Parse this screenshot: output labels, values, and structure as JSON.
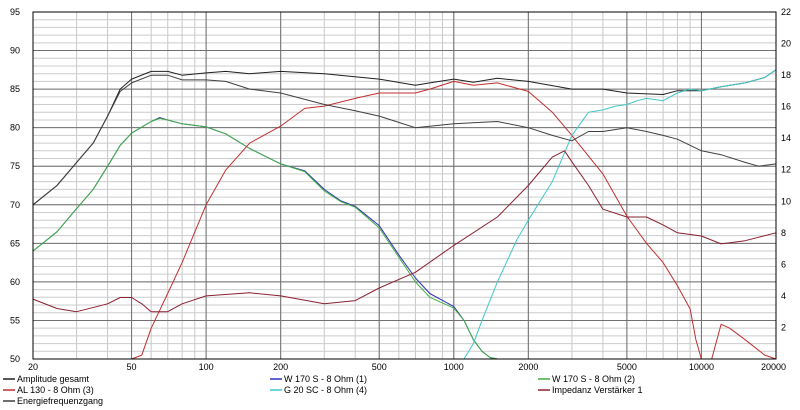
{
  "chart_data": {
    "type": "line",
    "x_scale": "log",
    "xlim": [
      20,
      20000
    ],
    "ylim": [
      50,
      95
    ],
    "y2lim": [
      0,
      22
    ],
    "grid": true,
    "x_ticks": [
      20,
      50,
      100,
      200,
      500,
      1000,
      2000,
      5000,
      10000,
      20000
    ],
    "x_tick_labels": [
      "20",
      "50",
      "100",
      "200",
      "500",
      "1000",
      "2000",
      "5000",
      "10000",
      "20000"
    ],
    "y_ticks": [
      50,
      55,
      60,
      65,
      70,
      75,
      80,
      85,
      90,
      95
    ],
    "y2_ticks": [
      2,
      4,
      6,
      8,
      10,
      12,
      14,
      16,
      18,
      20,
      22
    ],
    "legend_position": "bottom",
    "series": [
      {
        "name": "Amplitude gesamt",
        "color": "#202020",
        "axis": "left",
        "points": [
          [
            20,
            70.0
          ],
          [
            25,
            72.5
          ],
          [
            30,
            75.5
          ],
          [
            35,
            78.0
          ],
          [
            40,
            81.5
          ],
          [
            45,
            85.0
          ],
          [
            50,
            86.3
          ],
          [
            60,
            87.3
          ],
          [
            70,
            87.3
          ],
          [
            80,
            86.8
          ],
          [
            100,
            87.1
          ],
          [
            120,
            87.3
          ],
          [
            150,
            87.0
          ],
          [
            200,
            87.3
          ],
          [
            300,
            87.0
          ],
          [
            500,
            86.3
          ],
          [
            700,
            85.5
          ],
          [
            800,
            85.8
          ],
          [
            1000,
            86.3
          ],
          [
            1200,
            85.9
          ],
          [
            1500,
            86.4
          ],
          [
            2000,
            86.0
          ],
          [
            3000,
            85.0
          ],
          [
            4000,
            85.0
          ],
          [
            5000,
            84.5
          ],
          [
            7000,
            84.3
          ],
          [
            8000,
            84.8
          ],
          [
            10000,
            84.8
          ],
          [
            12000,
            85.3
          ],
          [
            15000,
            85.8
          ],
          [
            18000,
            86.5
          ],
          [
            20000,
            87.5
          ]
        ]
      },
      {
        "name": "W 170 S - 8 Ohm (1)",
        "color": "#3030c0",
        "axis": "left",
        "points": [
          [
            20,
            64.0
          ],
          [
            25,
            66.5
          ],
          [
            30,
            69.5
          ],
          [
            35,
            72.0
          ],
          [
            40,
            75.0
          ],
          [
            45,
            77.7
          ],
          [
            50,
            79.3
          ],
          [
            60,
            80.8
          ],
          [
            65,
            81.3
          ],
          [
            70,
            81.0
          ],
          [
            80,
            80.5
          ],
          [
            100,
            80.1
          ],
          [
            120,
            79.2
          ],
          [
            150,
            77.3
          ],
          [
            200,
            75.3
          ],
          [
            250,
            74.4
          ],
          [
            300,
            72.0
          ],
          [
            350,
            70.5
          ],
          [
            400,
            69.8
          ],
          [
            500,
            67.3
          ],
          [
            600,
            63.5
          ],
          [
            700,
            60.5
          ],
          [
            800,
            58.5
          ],
          [
            1000,
            56.8
          ],
          [
            1100,
            55.0
          ],
          [
            1200,
            52.5
          ],
          [
            1300,
            51.0
          ],
          [
            1400,
            50.2
          ],
          [
            1500,
            50.0
          ],
          [
            20000,
            50.0
          ]
        ]
      },
      {
        "name": "W 170 S - 8 Ohm (2)",
        "color": "#40b040",
        "axis": "left",
        "points": [
          [
            20,
            64.0
          ],
          [
            25,
            66.5
          ],
          [
            30,
            69.5
          ],
          [
            35,
            72.0
          ],
          [
            40,
            75.0
          ],
          [
            45,
            77.7
          ],
          [
            50,
            79.3
          ],
          [
            60,
            80.8
          ],
          [
            65,
            81.2
          ],
          [
            70,
            81.0
          ],
          [
            80,
            80.5
          ],
          [
            100,
            80.1
          ],
          [
            120,
            79.2
          ],
          [
            150,
            77.3
          ],
          [
            200,
            75.3
          ],
          [
            250,
            74.3
          ],
          [
            300,
            71.8
          ],
          [
            350,
            70.4
          ],
          [
            400,
            69.7
          ],
          [
            500,
            67.0
          ],
          [
            600,
            63.2
          ],
          [
            700,
            60.0
          ],
          [
            800,
            58.0
          ],
          [
            1000,
            56.6
          ],
          [
            1100,
            55.0
          ],
          [
            1200,
            52.5
          ],
          [
            1300,
            51.0
          ],
          [
            1400,
            50.2
          ],
          [
            1500,
            50.0
          ],
          [
            20000,
            50.0
          ]
        ]
      },
      {
        "name": "AL 130 - 8 Ohm (3)",
        "color": "#c03030",
        "axis": "left",
        "points": [
          [
            20,
            50.0
          ],
          [
            50,
            50.0
          ],
          [
            55,
            50.5
          ],
          [
            60,
            54.0
          ],
          [
            70,
            58.5
          ],
          [
            80,
            62.5
          ],
          [
            100,
            70.0
          ],
          [
            120,
            74.5
          ],
          [
            150,
            78.0
          ],
          [
            200,
            80.2
          ],
          [
            250,
            82.5
          ],
          [
            300,
            82.8
          ],
          [
            400,
            83.8
          ],
          [
            500,
            84.5
          ],
          [
            700,
            84.5
          ],
          [
            800,
            85.0
          ],
          [
            1000,
            86.0
          ],
          [
            1200,
            85.5
          ],
          [
            1500,
            85.8
          ],
          [
            2000,
            84.7
          ],
          [
            2500,
            82.0
          ],
          [
            3000,
            79.0
          ],
          [
            4000,
            74.0
          ],
          [
            5000,
            68.5
          ],
          [
            6000,
            65.0
          ],
          [
            7000,
            62.5
          ],
          [
            8000,
            59.5
          ],
          [
            9000,
            56.5
          ],
          [
            9500,
            52.5
          ],
          [
            10000,
            50.0
          ],
          [
            11000,
            50.0
          ],
          [
            12000,
            54.5
          ],
          [
            13000,
            54.0
          ],
          [
            15000,
            52.5
          ],
          [
            18000,
            50.5
          ],
          [
            20000,
            50.0
          ]
        ]
      },
      {
        "name": "G 20 SC - 8 Ohm (4)",
        "color": "#40c8c8",
        "axis": "left",
        "points": [
          [
            20,
            50.0
          ],
          [
            1100,
            50.0
          ],
          [
            1200,
            52.0
          ],
          [
            1300,
            55.0
          ],
          [
            1500,
            60.0
          ],
          [
            1800,
            65.5
          ],
          [
            2000,
            68.0
          ],
          [
            2500,
            73.0
          ],
          [
            3000,
            79.0
          ],
          [
            3500,
            82.0
          ],
          [
            4000,
            82.3
          ],
          [
            4500,
            82.8
          ],
          [
            5000,
            83.0
          ],
          [
            5500,
            83.5
          ],
          [
            6000,
            83.8
          ],
          [
            7000,
            83.5
          ],
          [
            8000,
            84.5
          ],
          [
            9000,
            85.0
          ],
          [
            10000,
            84.8
          ],
          [
            12000,
            85.3
          ],
          [
            15000,
            85.8
          ],
          [
            18000,
            86.5
          ],
          [
            20000,
            87.5
          ]
        ]
      },
      {
        "name": "Impedanz Verstärker 1",
        "color": "#8a2030",
        "axis": "right",
        "points": [
          [
            20,
            3.8
          ],
          [
            25,
            3.2
          ],
          [
            30,
            3.0
          ],
          [
            40,
            3.5
          ],
          [
            45,
            3.9
          ],
          [
            50,
            3.9
          ],
          [
            55,
            3.5
          ],
          [
            60,
            3.0
          ],
          [
            70,
            3.0
          ],
          [
            80,
            3.5
          ],
          [
            100,
            4.0
          ],
          [
            150,
            4.2
          ],
          [
            200,
            4.0
          ],
          [
            300,
            3.5
          ],
          [
            400,
            3.7
          ],
          [
            500,
            4.5
          ],
          [
            700,
            5.5
          ],
          [
            1000,
            7.2
          ],
          [
            1500,
            9.0
          ],
          [
            2000,
            11.0
          ],
          [
            2500,
            12.8
          ],
          [
            2800,
            13.2
          ],
          [
            3000,
            12.5
          ],
          [
            3500,
            11.0
          ],
          [
            4000,
            9.5
          ],
          [
            5000,
            9.0
          ],
          [
            6000,
            9.0
          ],
          [
            7000,
            8.5
          ],
          [
            8000,
            8.0
          ],
          [
            10000,
            7.8
          ],
          [
            12000,
            7.3
          ],
          [
            15000,
            7.5
          ],
          [
            20000,
            8.0
          ]
        ]
      },
      {
        "name": "Energiefrequenzgang",
        "color": "#404040",
        "axis": "left",
        "points": [
          [
            20,
            70.0
          ],
          [
            25,
            72.5
          ],
          [
            30,
            75.5
          ],
          [
            35,
            78.0
          ],
          [
            40,
            81.5
          ],
          [
            45,
            84.7
          ],
          [
            50,
            85.8
          ],
          [
            60,
            86.8
          ],
          [
            70,
            86.8
          ],
          [
            80,
            86.2
          ],
          [
            100,
            86.2
          ],
          [
            120,
            86.0
          ],
          [
            150,
            85.0
          ],
          [
            200,
            84.5
          ],
          [
            300,
            83.0
          ],
          [
            400,
            82.2
          ],
          [
            500,
            81.5
          ],
          [
            700,
            80.0
          ],
          [
            1000,
            80.5
          ],
          [
            1500,
            80.8
          ],
          [
            2000,
            80.0
          ],
          [
            2500,
            79.0
          ],
          [
            3000,
            78.3
          ],
          [
            3500,
            79.5
          ],
          [
            4000,
            79.5
          ],
          [
            5000,
            80.0
          ],
          [
            6000,
            79.5
          ],
          [
            7000,
            79.0
          ],
          [
            8000,
            78.5
          ],
          [
            10000,
            77.0
          ],
          [
            12000,
            76.5
          ],
          [
            15000,
            75.5
          ],
          [
            17000,
            75.0
          ],
          [
            20000,
            75.3
          ]
        ]
      }
    ]
  }
}
